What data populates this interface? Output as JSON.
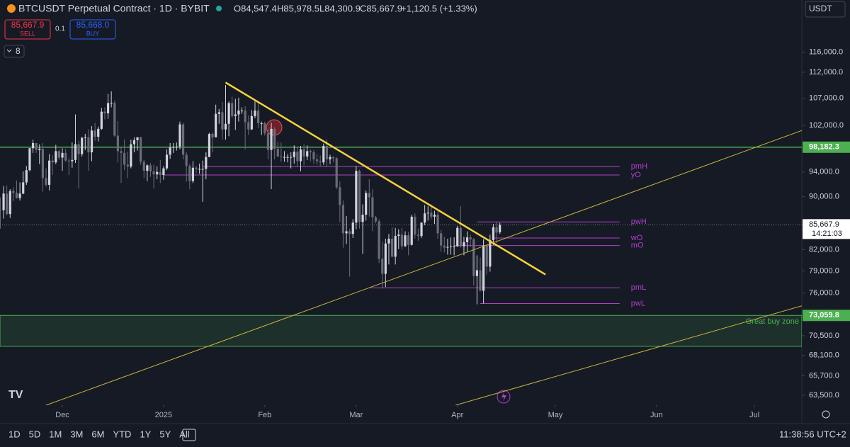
{
  "header": {
    "symbol": "BTCUSDT Perpetual Contract · 1D · BYBIT",
    "open": "O84,547.4",
    "high": "H85,978.5",
    "low": "L84,300.9",
    "close": "C85,667.9",
    "change": "+1,120.5 (+1.33%)",
    "sell_price": "85,667.9",
    "sell": "SELL",
    "spread": "0.1",
    "buy_price": "85,668.0",
    "buy": "BUY",
    "indicator_count": "8",
    "currency": "USDT"
  },
  "footer": {
    "ranges": [
      "1D",
      "5D",
      "1M",
      "3M",
      "6M",
      "YTD",
      "1Y",
      "5Y",
      "All"
    ],
    "clock": "11:38:56 UTC+2"
  },
  "chart_data": {
    "type": "candlestick",
    "log_scale": true,
    "grid": false,
    "up_color": "#d1d4dc",
    "down_color": "#6a6d78",
    "xlim": [
      -0.1,
      245.5
    ],
    "xticks": [
      {
        "value": 19,
        "label": "Dec"
      },
      {
        "value": 50,
        "label": "2025"
      },
      {
        "value": 81,
        "label": "Feb"
      },
      {
        "value": 109,
        "label": "Mar"
      },
      {
        "value": 140,
        "label": "Apr"
      },
      {
        "value": 170,
        "label": "May"
      },
      {
        "value": 201,
        "label": "Jun"
      },
      {
        "value": 231,
        "label": "Jul"
      }
    ],
    "ylim": [
      62400,
      122800
    ],
    "yticks": [
      {
        "value": 116000,
        "label": "116,000.0"
      },
      {
        "value": 112000,
        "label": "112,000.0"
      },
      {
        "value": 107000,
        "label": "107,000.0"
      },
      {
        "value": 102000,
        "label": "102,000.0"
      },
      {
        "value": 94000,
        "label": "94,000.0"
      },
      {
        "value": 90000,
        "label": "90,000.0"
      },
      {
        "value": 82000,
        "label": "82,000.0"
      },
      {
        "value": 79000,
        "label": "79,000.0"
      },
      {
        "value": 76000,
        "label": "76,000.0"
      },
      {
        "value": 70500,
        "label": "70,500.0"
      },
      {
        "value": 68100,
        "label": "68,100.0"
      },
      {
        "value": 65700,
        "label": "65,700.0"
      },
      {
        "value": 63500,
        "label": "63,500.0"
      }
    ],
    "ohlc": [
      [
        88000,
        89900,
        85100,
        87900
      ],
      [
        87900,
        91700,
        86600,
        90500
      ],
      [
        90500,
        91800,
        87100,
        87300
      ],
      [
        87300,
        91200,
        86700,
        90900
      ],
      [
        90900,
        91500,
        89300,
        90600
      ],
      [
        90600,
        92600,
        89700,
        89800
      ],
      [
        89800,
        92300,
        89400,
        90500
      ],
      [
        90500,
        94100,
        90400,
        92300
      ],
      [
        92300,
        95000,
        91900,
        94300
      ],
      [
        94300,
        98000,
        94100,
        98000
      ],
      [
        98000,
        99500,
        97200,
        98900
      ],
      [
        98900,
        98900,
        97200,
        97700
      ],
      [
        97700,
        98700,
        95300,
        97900
      ],
      [
        97900,
        98900,
        90800,
        93000
      ],
      [
        93000,
        94600,
        91600,
        91900
      ],
      [
        91900,
        97000,
        91000,
        95900
      ],
      [
        95900,
        96800,
        93500,
        95600
      ],
      [
        95600,
        98600,
        95300,
        97500
      ],
      [
        97500,
        97800,
        96000,
        96400
      ],
      [
        96400,
        98000,
        94200,
        97200
      ],
      [
        97200,
        97900,
        95700,
        95900
      ],
      [
        95900,
        96300,
        93500,
        95800
      ],
      [
        95800,
        99000,
        94700,
        96000
      ],
      [
        96000,
        104000,
        95500,
        98700
      ],
      [
        98700,
        99300,
        91300,
        97000
      ],
      [
        97000,
        100000,
        96600,
        99800
      ],
      [
        99800,
        100500,
        97700,
        99900
      ],
      [
        99900,
        101300,
        94200,
        97300
      ],
      [
        97300,
        101900,
        95800,
        101100
      ],
      [
        101100,
        102500,
        99300,
        100000
      ],
      [
        100000,
        101800,
        99200,
        101400
      ],
      [
        101400,
        105200,
        101200,
        104500
      ],
      [
        104500,
        105300,
        103100,
        104200
      ],
      [
        104200,
        107800,
        103200,
        106100
      ],
      [
        106100,
        108300,
        105300,
        106100
      ],
      [
        106100,
        106500,
        100000,
        100200
      ],
      [
        100200,
        102800,
        95600,
        97500
      ],
      [
        97500,
        98100,
        92200,
        97200
      ],
      [
        97200,
        99500,
        94300,
        95200
      ],
      [
        95200,
        97400,
        93000,
        94900
      ],
      [
        94900,
        99500,
        94600,
        98700
      ],
      [
        98700,
        99900,
        97300,
        99400
      ],
      [
        99400,
        99900,
        97600,
        99900
      ],
      [
        99900,
        100000,
        95200,
        95700
      ],
      [
        95700,
        96000,
        93000,
        94200
      ],
      [
        94200,
        95300,
        92500,
        95100
      ],
      [
        95100,
        95500,
        93200,
        94100
      ],
      [
        94100,
        95200,
        91300,
        93600
      ],
      [
        93600,
        94900,
        92800,
        94000
      ],
      [
        94000,
        96000,
        92200,
        93500
      ],
      [
        93500,
        95000,
        92700,
        94600
      ],
      [
        94600,
        97800,
        94300,
        96900
      ],
      [
        96900,
        98900,
        96200,
        98100
      ],
      [
        98100,
        98900,
        97200,
        98200
      ],
      [
        98200,
        99000,
        97600,
        98300
      ],
      [
        98300,
        102700,
        97800,
        102200
      ],
      [
        102200,
        102500,
        96100,
        96900
      ],
      [
        96900,
        97300,
        92400,
        95000
      ],
      [
        95000,
        95300,
        91200,
        92500
      ],
      [
        92500,
        95800,
        92200,
        94700
      ],
      [
        94700,
        95000,
        93800,
        94500
      ],
      [
        94500,
        95400,
        93700,
        94500
      ],
      [
        94500,
        95900,
        89200,
        94500
      ],
      [
        94500,
        97300,
        92800,
        96500
      ],
      [
        96500,
        100700,
        96500,
        100500
      ],
      [
        100500,
        100800,
        97300,
        99900
      ],
      [
        99900,
        105800,
        99900,
        104100
      ],
      [
        104100,
        105000,
        102300,
        104400
      ],
      [
        104400,
        106300,
        99500,
        101300
      ],
      [
        101300,
        109500,
        99500,
        102300
      ],
      [
        102300,
        106400,
        100100,
        106100
      ],
      [
        106100,
        107300,
        103300,
        103700
      ],
      [
        103700,
        106900,
        101200,
        104000
      ],
      [
        104000,
        107100,
        102700,
        104700
      ],
      [
        104700,
        105300,
        104100,
        104700
      ],
      [
        104700,
        105500,
        97800,
        102600
      ],
      [
        102600,
        103800,
        100300,
        101300
      ],
      [
        101300,
        104800,
        101200,
        103700
      ],
      [
        103700,
        106400,
        103300,
        104700
      ],
      [
        104700,
        106500,
        101500,
        102400
      ],
      [
        102400,
        102700,
        100300,
        102400
      ],
      [
        102400,
        102700,
        100200,
        100600
      ],
      [
        100600,
        101400,
        96100,
        97700
      ],
      [
        97700,
        102500,
        91200,
        101400
      ],
      [
        101400,
        101700,
        96100,
        97900
      ],
      [
        97900,
        99100,
        96500,
        96600
      ],
      [
        96600,
        99000,
        95700,
        96500
      ],
      [
        96500,
        97500,
        95700,
        96500
      ],
      [
        96500,
        97000,
        95600,
        96500
      ],
      [
        96500,
        97300,
        94600,
        96500
      ],
      [
        96500,
        98500,
        95400,
        97400
      ],
      [
        97400,
        98100,
        94800,
        95800
      ],
      [
        95800,
        98400,
        94100,
        97800
      ],
      [
        97800,
        98700,
        95100,
        96600
      ],
      [
        96600,
        98500,
        96000,
        97500
      ],
      [
        97500,
        97800,
        95800,
        97300
      ],
      [
        97300,
        97700,
        95400,
        96100
      ],
      [
        96100,
        97000,
        95200,
        95800
      ],
      [
        95800,
        96800,
        95000,
        95600
      ],
      [
        95600,
        98800,
        95200,
        98400
      ],
      [
        98400,
        99500,
        94800,
        96100
      ],
      [
        96100,
        96900,
        95300,
        96500
      ],
      [
        96500,
        96600,
        95600,
        96300
      ],
      [
        96300,
        96500,
        91200,
        91500
      ],
      [
        91500,
        92500,
        86100,
        88700
      ],
      [
        88700,
        89400,
        82300,
        84400
      ],
      [
        84400,
        87000,
        82800,
        84700
      ],
      [
        84700,
        85100,
        78200,
        84300
      ],
      [
        84300,
        86500,
        83700,
        86000
      ],
      [
        86000,
        95000,
        85000,
        94200
      ],
      [
        94200,
        94400,
        85100,
        86100
      ],
      [
        86100,
        88800,
        81400,
        87200
      ],
      [
        87200,
        91000,
        86300,
        90600
      ],
      [
        90600,
        92800,
        86900,
        89900
      ],
      [
        89900,
        91200,
        84700,
        86800
      ],
      [
        86800,
        87000,
        85900,
        86200
      ],
      [
        86200,
        86500,
        80100,
        80700
      ],
      [
        80700,
        83200,
        76600,
        78600
      ],
      [
        78600,
        83600,
        76800,
        82900
      ],
      [
        82900,
        84300,
        79900,
        83600
      ],
      [
        83600,
        85300,
        80900,
        81000
      ],
      [
        81000,
        85200,
        79900,
        84000
      ],
      [
        84000,
        85000,
        82100,
        84200
      ],
      [
        84200,
        85200,
        82000,
        82500
      ],
      [
        82500,
        84700,
        82400,
        84100
      ],
      [
        84100,
        84600,
        81200,
        82700
      ],
      [
        82700,
        87200,
        82600,
        86900
      ],
      [
        86900,
        87400,
        83600,
        84200
      ],
      [
        84200,
        85100,
        83300,
        84000
      ],
      [
        84000,
        86000,
        83700,
        86000
      ],
      [
        86000,
        88700,
        85600,
        87400
      ],
      [
        87400,
        88500,
        86300,
        87500
      ],
      [
        87500,
        88800,
        86500,
        86900
      ],
      [
        86900,
        87800,
        85800,
        87200
      ],
      [
        87200,
        87700,
        83600,
        84400
      ],
      [
        84400,
        84900,
        81700,
        82600
      ],
      [
        82600,
        83900,
        81600,
        82300
      ],
      [
        82300,
        83600,
        81300,
        82400
      ],
      [
        82400,
        83800,
        81300,
        82500
      ],
      [
        82500,
        83800,
        81200,
        82500
      ],
      [
        82500,
        85500,
        82400,
        85200
      ],
      [
        85200,
        88500,
        82300,
        82500
      ],
      [
        82500,
        83900,
        81200,
        83100
      ],
      [
        83100,
        84700,
        81600,
        83800
      ],
      [
        83800,
        84200,
        82400,
        83500
      ],
      [
        83500,
        83700,
        77000,
        78300
      ],
      [
        78300,
        81200,
        74500,
        79100
      ],
      [
        79100,
        80900,
        76200,
        76300
      ],
      [
        76300,
        83500,
        74600,
        82600
      ],
      [
        82600,
        82700,
        78500,
        79600
      ],
      [
        79600,
        84200,
        78900,
        83400
      ],
      [
        83400,
        85800,
        82700,
        85300
      ],
      [
        85300,
        86100,
        83000,
        84500
      ],
      [
        84547.4,
        85978.5,
        84300.9,
        85667.9
      ]
    ],
    "levels": [
      {
        "label": "pmH",
        "value": 94900,
        "x": [
          62,
          189.7
        ]
      },
      {
        "label": "yO",
        "value": 93500,
        "x": [
          50,
          189.7
        ]
      },
      {
        "label": "pwH",
        "value": 86100,
        "x": [
          146,
          189.7
        ]
      },
      {
        "label": "wO",
        "value": 83700,
        "x": [
          151,
          189.7
        ]
      },
      {
        "label": "mO",
        "value": 82600,
        "x": [
          139,
          189.7
        ]
      },
      {
        "label": "pmL",
        "value": 76700,
        "x": [
          113,
          189.7
        ]
      },
      {
        "label": "pwL",
        "value": 74600,
        "x": [
          147,
          189.7
        ]
      }
    ],
    "level_color": "#b040c8",
    "trendlines": [
      {
        "color": "#f5d33c",
        "width": 2.5,
        "points": [
          [
            69,
            110000
          ],
          [
            167,
            78500
          ]
        ]
      },
      {
        "color": "#c9b43a",
        "width": 1,
        "points": [
          [
            14,
            62400
          ],
          [
            245.5,
            101100
          ]
        ]
      },
      {
        "color": "#c9b43a",
        "width": 1,
        "points": [
          [
            139.4,
            62400
          ],
          [
            245.5,
            74300
          ]
        ]
      }
    ],
    "support_line": {
      "value": 98182.3,
      "label": "98,182.3",
      "color": "#4caf50"
    },
    "zone": {
      "top": 73059.8,
      "bottom": 69200,
      "label": "Great buy zone",
      "top_label": "73,059.8",
      "color": "#4caf50"
    },
    "last_price": {
      "value": 85667.9,
      "label": "85,667.9",
      "countdown": "14:21:03"
    }
  }
}
